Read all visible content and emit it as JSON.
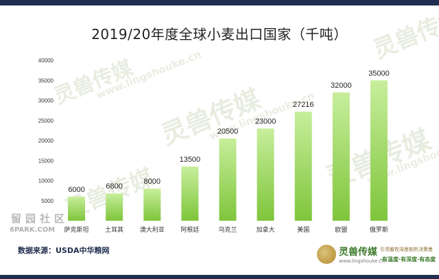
{
  "watermark": {
    "brand_text": "灵兽传媒",
    "url_text": "www.lingshouke.cn",
    "site_text": "留园社区",
    "site_url": "6PARK.COM"
  },
  "colors": {
    "bar_top": "#c7ee9c",
    "bar_bottom": "#7fc53b",
    "frame": "#1f2d4e"
  },
  "source": "数据来源：USDA中华粮网",
  "brand": {
    "name": "灵兽传媒",
    "url": "www.lingshouke.cn",
    "slogan1": "引领畜牧深度剖析决策者",
    "slogan2": "·有温度·有深度·有态度"
  },
  "chart_data": {
    "type": "bar",
    "title": "2019/20年度全球小麦出口国家（千吨）",
    "categories": [
      "萨克斯坦",
      "土耳其",
      "澳大利亚",
      "阿根廷",
      "乌克兰",
      "加拿大",
      "美国",
      "欧盟",
      "俄罗斯"
    ],
    "values": [
      6000,
      6800,
      8000,
      13500,
      20500,
      23000,
      27216,
      32000,
      35000
    ],
    "data_labels": [
      "6000",
      "6800",
      "8000",
      "13500",
      "20500",
      "23000",
      "27216",
      "32000",
      "35000"
    ],
    "yticks": [
      5000,
      10000,
      15000,
      20000,
      25000,
      30000,
      35000,
      40000
    ],
    "yticks_labels": [
      "5000",
      "10000",
      "15000",
      "20000",
      "25000",
      "30000",
      "35000",
      "40000"
    ],
    "ylim": [
      0,
      40000
    ],
    "xlabel": "",
    "ylabel": "",
    "grid": false,
    "legend": "none"
  }
}
